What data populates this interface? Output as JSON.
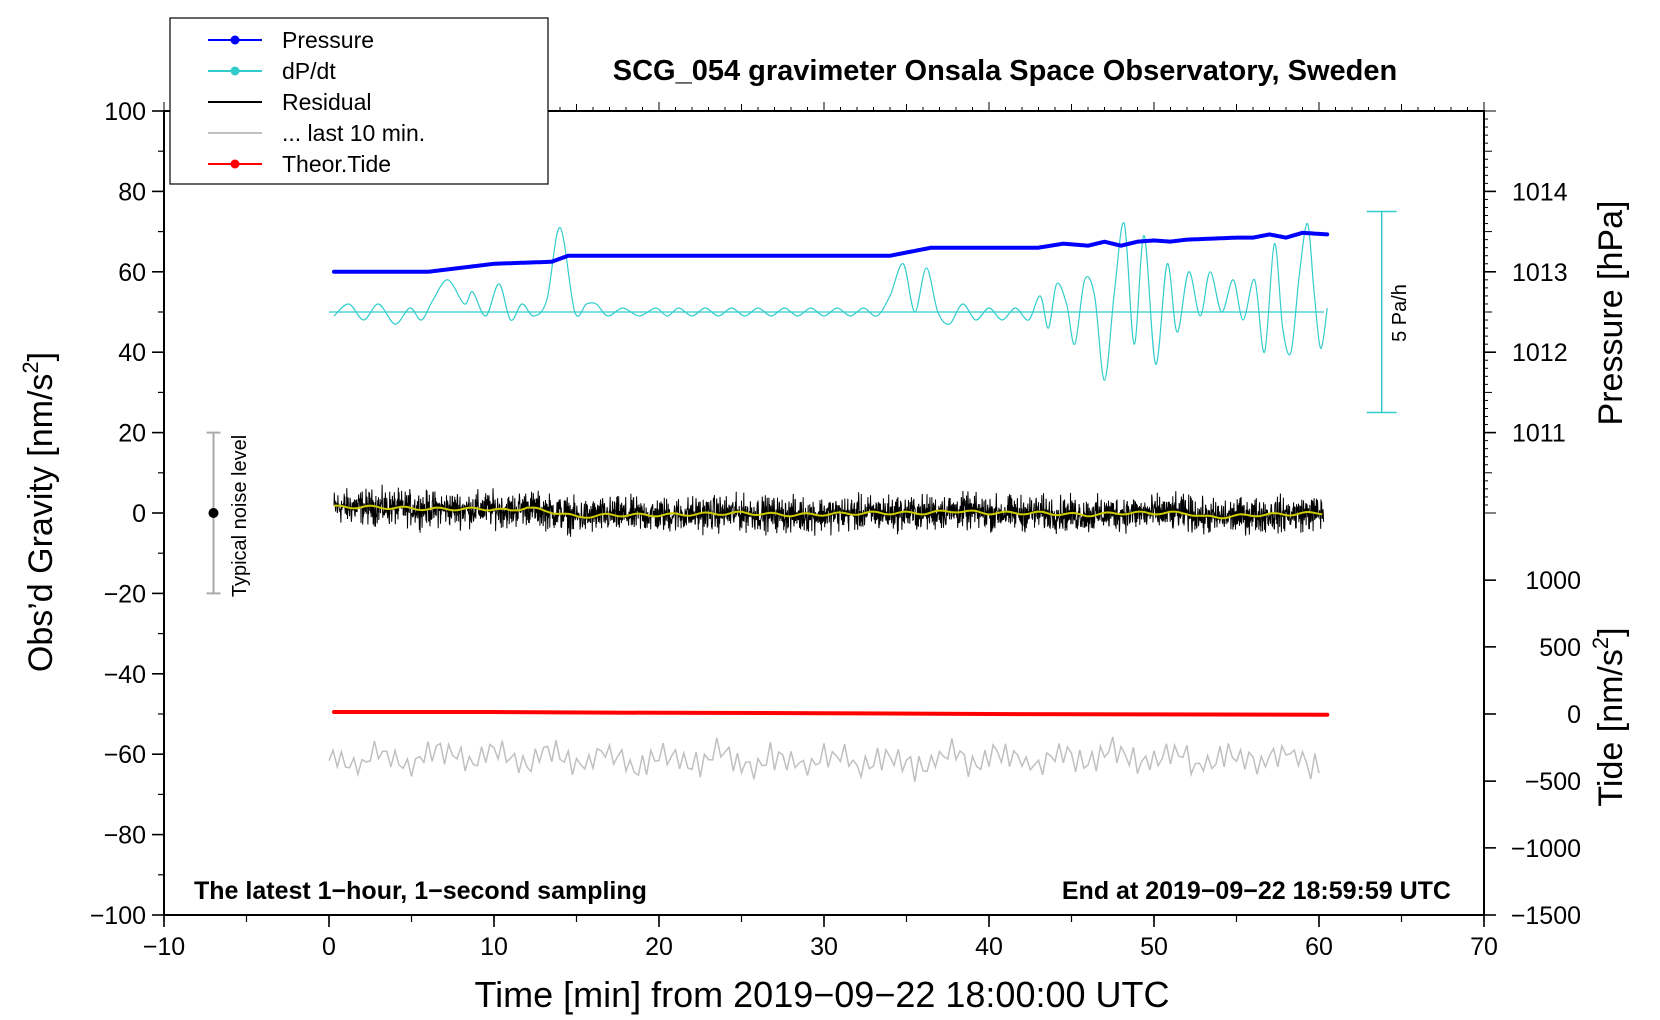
{
  "chart_data": {
    "type": "line",
    "title": "SCG_054 gravimeter Onsala Space Observatory, Sweden",
    "xlabel": "Time [min] from 2019−09−22 18:00:00 UTC",
    "ylabel": "Obs’d Gravity [nm/s²]",
    "ylabel_parts": {
      "base": "Obs’d Gravity [nm/s",
      "sup": "2",
      "tail": "]"
    },
    "pressure_label": "Pressure [hPa]",
    "tide_label_parts": {
      "base": "Tide [nm/s",
      "sup": "2",
      "tail": "]"
    },
    "xlim": [
      -10,
      70
    ],
    "ylim": [
      -100,
      100
    ],
    "x_ticks": [
      -10,
      0,
      10,
      20,
      30,
      40,
      50,
      60,
      70
    ],
    "x_tick_labels": [
      "−10",
      "0",
      "10",
      "20",
      "30",
      "40",
      "50",
      "60",
      "70"
    ],
    "y_ticks": [
      -100,
      -80,
      -60,
      -40,
      -20,
      0,
      20,
      40,
      60,
      80,
      100
    ],
    "y_tick_labels": [
      "−100",
      "−80",
      "−60",
      "−40",
      "−20",
      "0",
      "20",
      "40",
      "60",
      "80",
      "100"
    ],
    "pressure_axis": {
      "ticks": [
        1011,
        1012,
        1013,
        1014
      ],
      "tick_labels": [
        "1011",
        "1012",
        "1013",
        "1014"
      ],
      "gravity_equiv": [
        20,
        40,
        60,
        80
      ]
    },
    "tide_axis": {
      "ticks": [
        1000,
        500,
        0,
        -500,
        -1000,
        -1500
      ],
      "tick_labels": [
        "1000",
        "500",
        "0",
        "−500",
        "−1000",
        "−1500"
      ],
      "gravity_equiv": [
        -16.7,
        -33.3,
        -50,
        -66.7,
        -83.3,
        -100
      ]
    },
    "legend": {
      "position": "top-left",
      "entries": [
        {
          "label": "Pressure",
          "color": "#0000ff",
          "marker": true
        },
        {
          "label": "dP/dt",
          "color": "#33cccc",
          "marker": true
        },
        {
          "label": "Residual",
          "color": "#000000",
          "marker": false
        },
        {
          "label": "... last 10 min.",
          "color": "#c0c0c0",
          "marker": false
        },
        {
          "label": "Theor.Tide",
          "color": "#ff0000",
          "marker": true
        }
      ]
    },
    "annotations": {
      "bottom_left": "The latest 1−hour, 1−second sampling",
      "bottom_right": "End at 2019−09−22 18:59:59 UTC",
      "noise_label": "Typical noise level",
      "noise_bar": {
        "x": -7,
        "center": 0,
        "low": -20,
        "high": 20
      },
      "scale_label": "5 Pa/h",
      "scale_bar": {
        "x": 63.8,
        "low": 25,
        "high": 75
      }
    },
    "series": [
      {
        "name": "Pressure",
        "color": "#0000ff",
        "x": [
          0.3,
          6,
          8,
          10,
          13.5,
          14.5,
          20,
          34,
          36.5,
          43,
          44.5,
          46,
          47,
          48,
          49,
          50,
          51,
          52,
          55,
          56,
          57,
          58,
          59,
          60.5
        ],
        "y": [
          60,
          60,
          61,
          62,
          62.5,
          64,
          64,
          64,
          66,
          66,
          67,
          66.5,
          67.5,
          66.5,
          67.5,
          67.8,
          67.5,
          68,
          68.5,
          68.5,
          69.3,
          68.5,
          69.7,
          69.3
        ]
      },
      {
        "name": "dP/dt",
        "color": "#33cccc",
        "baseline": 50,
        "x": [
          0.3,
          1.2,
          2.1,
          3,
          4,
          4.9,
          5.6,
          6.3,
          7.2,
          8.2,
          8.7,
          9.5,
          10.3,
          11,
          11.7,
          12.4,
          13.2,
          14,
          14.9,
          15.6,
          16.2,
          16.9,
          17.8,
          18.8,
          19.8,
          20.5,
          21.2,
          22,
          22.8,
          23.6,
          24.4,
          25.2,
          26,
          26.8,
          27.6,
          28.4,
          29.2,
          30,
          30.8,
          31.6,
          32.4,
          33.2,
          34,
          34.8,
          35.5,
          36.2,
          36.9,
          37.6,
          38.4,
          39.2,
          40,
          40.8,
          41.6,
          42.4,
          43.1,
          43.6,
          44.1,
          44.7,
          45.2,
          45.8,
          46.4,
          47,
          47.6,
          48.2,
          48.8,
          49.4,
          50.1,
          50.8,
          51.4,
          52.1,
          52.8,
          53.4,
          54.1,
          54.8,
          55.4,
          56.1,
          56.7,
          57.3,
          57.8,
          58.3,
          58.8,
          59.3,
          59.7,
          60.1,
          60.5
        ],
        "y": [
          49,
          52,
          48,
          52,
          47,
          51,
          48,
          53,
          58,
          52,
          55,
          49,
          57,
          48,
          52,
          49,
          53,
          71,
          50,
          52,
          52,
          49,
          51,
          49,
          51,
          49,
          51,
          49,
          51,
          49,
          51,
          49,
          51,
          49,
          51,
          49,
          51,
          49,
          51,
          49,
          51,
          49,
          54,
          62,
          50,
          61,
          50,
          47,
          52,
          48,
          51,
          48,
          51,
          48,
          54,
          46,
          57,
          52,
          42,
          58,
          54,
          33,
          55,
          72,
          42,
          69,
          37,
          62,
          45,
          60,
          49,
          60,
          50,
          58,
          48,
          58,
          40,
          67,
          46,
          40,
          59,
          72,
          55,
          41,
          51
        ]
      },
      {
        "name": "Residual",
        "color": "#000000",
        "x": [
          0.3,
          2,
          4,
          6,
          8,
          10,
          11,
          12,
          13,
          14,
          15,
          17,
          20,
          22,
          25,
          28,
          30,
          33,
          36,
          38,
          40,
          43,
          46,
          48,
          50,
          52,
          53,
          54,
          56,
          58,
          60
        ],
        "y": [
          1.5,
          1.5,
          1.3,
          1,
          1,
          1,
          0.5,
          1.5,
          0.5,
          0,
          -1,
          -0.5,
          -0.5,
          -0.3,
          0,
          -0.5,
          -0.3,
          0,
          0,
          0.5,
          0,
          0,
          -0.5,
          0,
          0,
          0,
          -1,
          -1,
          -0.5,
          -0.3,
          0
        ]
      },
      {
        "name": "Theor.Tide",
        "color": "#ff0000",
        "x": [
          0.3,
          10,
          20,
          30,
          40,
          50,
          60.5
        ],
        "y": [
          -49.5,
          -49.5,
          -49.7,
          -49.8,
          -50,
          -50.1,
          -50.2
        ]
      },
      {
        "name": "... last 10 min.",
        "color": "#c0c0c0",
        "x": [
          0,
          2.5,
          5,
          7.5,
          10,
          12.5,
          15,
          17.5,
          18.8,
          20,
          22.5,
          25,
          27.5,
          30,
          32.5,
          35,
          37.5,
          40,
          42.5,
          45,
          47.5,
          50,
          52.5,
          55,
          57.5,
          60
        ],
        "y": [
          -62,
          -61,
          -61,
          -60,
          -61,
          -61,
          -61,
          -61,
          -62,
          -62,
          -61,
          -61,
          -62,
          -61,
          -62,
          -62,
          -61,
          -61,
          -61,
          -61,
          -60,
          -61,
          -61,
          -61,
          -61,
          -62
        ]
      }
    ]
  }
}
